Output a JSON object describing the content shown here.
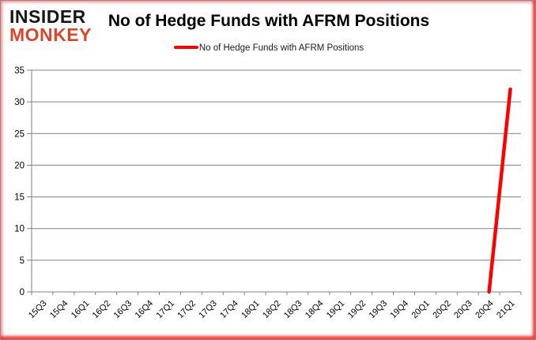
{
  "logo": {
    "line1": "INSIDER",
    "line2": "MONKEY",
    "line1_color": "#161616",
    "line2_color": "#d9472b"
  },
  "header": {
    "title": "No of Hedge Funds with AFRM Positions"
  },
  "legend": {
    "label": "No of Hedge Funds with AFRM Positions",
    "marker_color": "#fe0000",
    "position": "top-center"
  },
  "chart_data": {
    "type": "line",
    "title": "No of Hedge Funds with AFRM Positions",
    "xlabel": "",
    "ylabel": "",
    "categories": [
      "15Q3",
      "15Q4",
      "16Q1",
      "16Q2",
      "16Q3",
      "16Q4",
      "17Q1",
      "17Q2",
      "17Q3",
      "17Q4",
      "18Q1",
      "18Q2",
      "18Q3",
      "18Q4",
      "19Q1",
      "19Q2",
      "19Q3",
      "19Q4",
      "20Q1",
      "20Q2",
      "20Q3",
      "20Q4",
      "21Q1"
    ],
    "series": [
      {
        "name": "No of Hedge Funds with AFRM Positions",
        "color": "#fe0000",
        "values": [
          null,
          null,
          null,
          null,
          null,
          null,
          null,
          null,
          null,
          null,
          null,
          null,
          null,
          null,
          null,
          null,
          null,
          null,
          null,
          null,
          null,
          0,
          32
        ]
      }
    ],
    "ylim": [
      0,
      35
    ],
    "ytick_step": 5,
    "grid": true,
    "gridlines": "horizontal-only",
    "legend_position": "top-center",
    "grid_color": "#808080",
    "axis_color": "#808080",
    "tick_label_color": "#000000"
  }
}
